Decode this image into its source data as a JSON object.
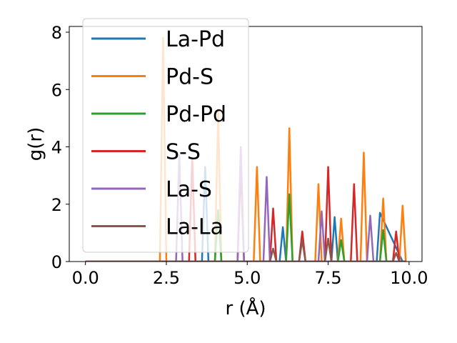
{
  "chart_data": {
    "type": "line",
    "xlabel": "r (Å)",
    "ylabel": "g(r)",
    "xlim": [
      -0.5,
      10.4
    ],
    "ylim": [
      0,
      8.2
    ],
    "xticks": [
      0.0,
      2.5,
      5.0,
      7.5,
      10.0
    ],
    "xtick_labels": [
      "0.0",
      "2.5",
      "5.0",
      "7.5",
      "10.0"
    ],
    "yticks": [
      0,
      2,
      4,
      6,
      8
    ],
    "ytick_labels": [
      "0",
      "2",
      "4",
      "6",
      "8"
    ],
    "grid": false,
    "legend": "upper-left",
    "series": [
      {
        "name": "La-Pd",
        "color": "#1f77b4",
        "x": [
          0.0,
          3.6,
          3.7,
          3.8,
          4.0,
          6.0,
          6.1,
          6.2,
          7.5,
          7.6,
          7.7,
          7.8,
          8.9,
          9.0,
          9.1,
          9.8
        ],
        "y": [
          0,
          0,
          3.3,
          0,
          0,
          0,
          1.2,
          0,
          0,
          0,
          1.55,
          0,
          0,
          0,
          1.7,
          0
        ]
      },
      {
        "name": "Pd-S",
        "color": "#ff7f0e",
        "x": [
          0.0,
          2.3,
          2.4,
          2.5,
          4.0,
          4.1,
          4.2,
          5.2,
          5.3,
          5.4,
          6.2,
          6.3,
          6.4,
          7.1,
          7.2,
          7.3,
          7.8,
          7.9,
          8.0,
          8.5,
          8.6,
          8.7,
          9.1,
          9.2,
          9.3,
          9.7,
          9.8,
          9.9
        ],
        "y": [
          0,
          0,
          7.8,
          0,
          0,
          5.25,
          0,
          0,
          3.3,
          0,
          0,
          4.65,
          0,
          0,
          2.7,
          0,
          0,
          1.5,
          0,
          0,
          3.8,
          0,
          0,
          2.2,
          0,
          0,
          1.95,
          0
        ]
      },
      {
        "name": "Pd-Pd",
        "color": "#2ca02c",
        "x": [
          0.0,
          4.0,
          4.1,
          4.2,
          6.2,
          6.3,
          6.4,
          7.8,
          7.9,
          8.0,
          9.1,
          9.2,
          9.3,
          9.9
        ],
        "y": [
          0,
          0,
          1.8,
          0,
          0,
          2.35,
          0,
          0,
          0.75,
          0,
          0,
          1.1,
          0,
          0
        ]
      },
      {
        "name": "S-S",
        "color": "#d62728",
        "x": [
          0.0,
          3.2,
          3.3,
          3.4,
          4.7,
          4.8,
          4.9,
          5.7,
          5.8,
          5.9,
          6.6,
          6.7,
          6.8,
          7.4,
          7.5,
          7.6,
          8.2,
          8.3,
          8.4,
          9.5,
          9.6,
          9.7,
          9.9
        ],
        "y": [
          0,
          0,
          3.6,
          0,
          0,
          3.3,
          0,
          0,
          1.85,
          0,
          0,
          1.05,
          0,
          0,
          3.3,
          0,
          0,
          2.7,
          0,
          0,
          1.05,
          0,
          0
        ]
      },
      {
        "name": "La-S",
        "color": "#9467bd",
        "x": [
          0.0,
          2.8,
          2.9,
          3.0,
          4.7,
          4.8,
          4.9,
          5.5,
          5.6,
          5.7,
          7.2,
          7.3,
          7.4,
          8.7,
          8.8,
          8.9,
          9.9
        ],
        "y": [
          0,
          0,
          3.7,
          0,
          0,
          4.0,
          0,
          0,
          2.95,
          0,
          0,
          1.75,
          0,
          0,
          1.6,
          0,
          0
        ]
      },
      {
        "name": "La-La",
        "color": "#8c564b",
        "x": [
          0.0,
          5.7,
          5.8,
          5.9,
          6.6,
          6.7,
          6.8,
          7.4,
          7.5,
          7.6,
          9.5,
          9.6,
          9.7,
          9.9
        ],
        "y": [
          0,
          0,
          0.45,
          0,
          0,
          0.75,
          0,
          0,
          0.8,
          0,
          0,
          0.3,
          0,
          0
        ]
      }
    ]
  }
}
